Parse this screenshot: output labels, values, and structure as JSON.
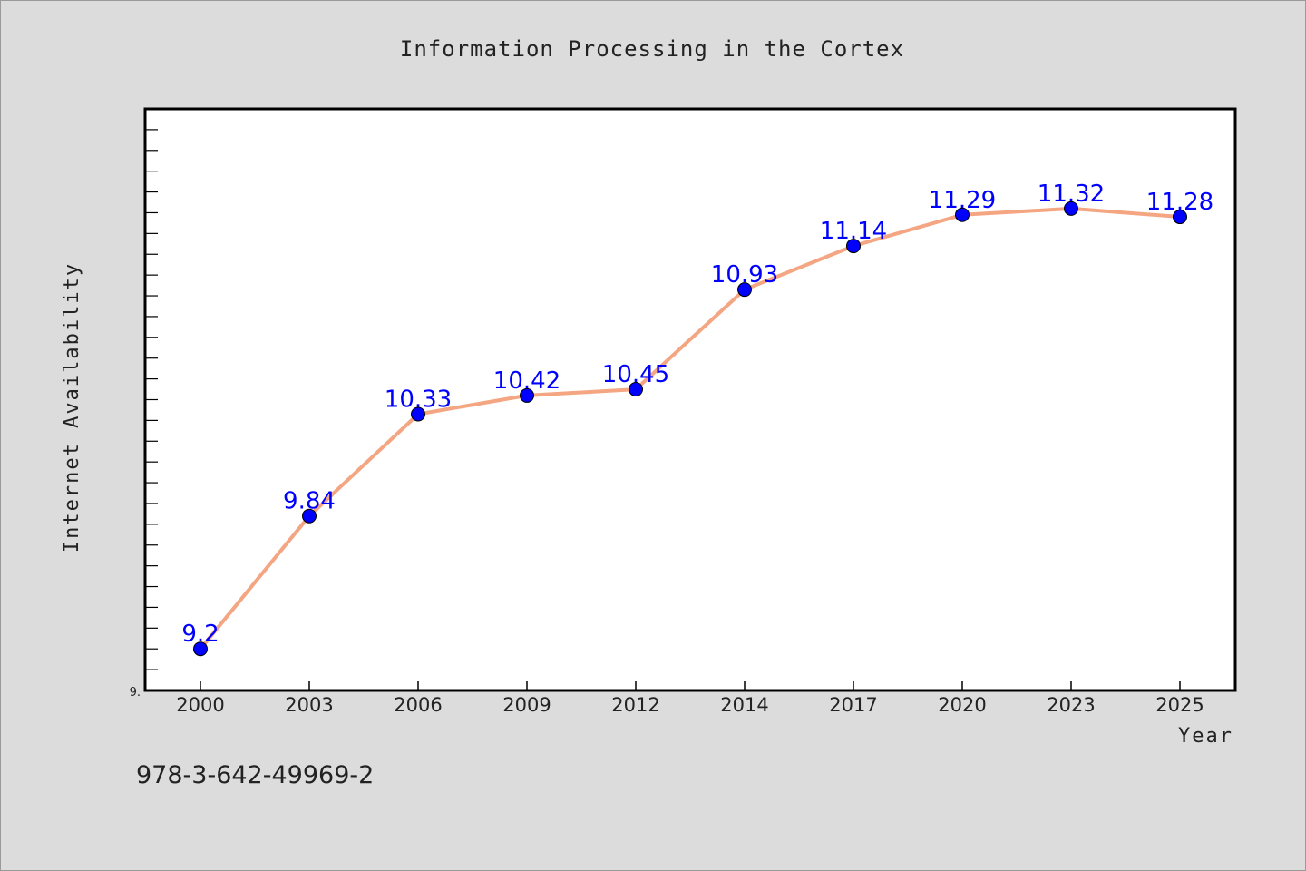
{
  "chart_data": {
    "type": "line",
    "title": "Information Processing in the Cortex",
    "xlabel": "Year",
    "ylabel": "Internet Availability",
    "categories": [
      "2000",
      "2003",
      "2006",
      "2009",
      "2012",
      "2014",
      "2017",
      "2020",
      "2023",
      "2025"
    ],
    "series": [
      {
        "values": [
          9.2,
          9.84,
          10.33,
          10.42,
          10.45,
          10.93,
          11.14,
          11.29,
          11.32,
          11.28
        ],
        "labels": [
          "9.2",
          "9.84",
          "10.33",
          "10.42",
          "10.45",
          "10.93",
          "11.14",
          "11.29",
          "11.32",
          "11.28"
        ]
      }
    ],
    "ylim": [
      9.0,
      11.8
    ],
    "ytick_label": "9.",
    "line_color": "#f4a582",
    "marker_color": "#0000ff",
    "label_color": "#0000ff",
    "grid": false,
    "legend": "none"
  },
  "footer": {
    "isbn": "978-3-642-49969-2"
  }
}
